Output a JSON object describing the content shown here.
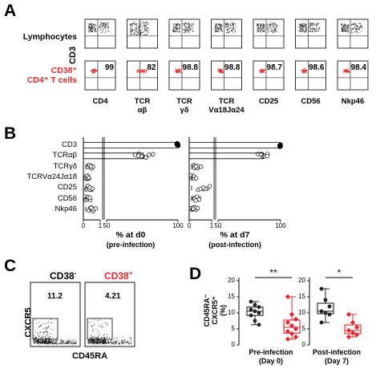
{
  "panel_a": {
    "letter": "A",
    "row_lymphocytes": "Lymphocytes",
    "row_cd38_line1": "CD38⁺",
    "row_cd38_line2": "CD4⁺ T cells",
    "y_axis_label": "CD3",
    "markers": [
      {
        "line1": "CD4",
        "line2": "",
        "value": "99"
      },
      {
        "line1": "TCR",
        "line2": "αβ",
        "value": "82"
      },
      {
        "line1": "TCR",
        "line2": "γδ",
        "value": "98.8"
      },
      {
        "line1": "TCR",
        "line2": "Vα18Jα24",
        "value": "98.8"
      },
      {
        "line1": "CD25",
        "line2": "",
        "value": "98.7"
      },
      {
        "line1": "CD56",
        "line2": "",
        "value": "98.6"
      },
      {
        "line1": "Nkp46",
        "line2": "",
        "value": "98.4"
      }
    ],
    "colors": {
      "lymphocyte_dots": "#222222",
      "cd38_dots": "#e8262a"
    }
  },
  "panel_b": {
    "letter": "B",
    "row_labels": [
      "CD3",
      "TCRαβ",
      "TCRγδ",
      "TCRVα24Jα18",
      "CD25",
      "CD56",
      "Nkp46"
    ],
    "x_ticks": [
      "0",
      "1",
      "50",
      "100"
    ],
    "d0_xlabel": "% at d0",
    "d0_sublabel": "(pre-infection)",
    "d7_xlabel": "% at d7",
    "d7_sublabel": "(post-infection)",
    "chart_data": [
      {
        "type": "scatter",
        "title": "",
        "xlabel": "% at d0 (pre-infection)",
        "categories": [
          "CD3",
          "TCRαβ",
          "TCRγδ",
          "TCRVα24Jα18",
          "CD25",
          "CD56",
          "Nkp46"
        ],
        "values": [
          [
            99.5,
            99.6,
            99.7,
            99.8,
            99.6,
            99.5,
            99.7
          ],
          [
            70,
            73,
            76,
            78,
            80,
            75,
            72,
            82
          ],
          [
            0.2,
            0.4,
            0.5,
            0.3,
            0.6,
            0.35,
            0.45
          ],
          [
            0.1,
            0.2,
            0.3,
            0.25,
            0.15,
            0.35,
            0.2
          ],
          [
            0.2,
            0.3,
            0.45,
            0.55,
            0.35,
            0.25,
            0.4
          ],
          [
            0.1,
            0.2,
            0.3,
            0.4,
            0.25,
            0.35,
            0.15
          ],
          [
            0.3,
            0.5,
            0.7,
            0.6,
            0.4,
            0.55,
            0.45
          ]
        ],
        "xlim": [
          0,
          100
        ]
      },
      {
        "type": "scatter",
        "title": "",
        "xlabel": "% at d7 (post-infection)",
        "categories": [
          "CD3",
          "TCRαβ",
          "TCRγδ",
          "TCRVα24Jα18",
          "CD25",
          "CD56",
          "Nkp46"
        ],
        "values": [
          [
            99.5,
            99.6,
            99.7,
            99.8,
            99.6,
            99.5,
            99.7
          ],
          [
            82,
            85,
            88,
            86,
            90,
            84,
            87,
            89
          ],
          [
            0.2,
            0.3,
            0.4,
            0.25,
            0.35,
            0.5,
            0.3
          ],
          [
            0.1,
            0.2,
            0.15,
            0.25,
            0.3,
            0.2,
            0.1
          ],
          [
            0.4,
            0.6,
            0.8,
            0.7,
            0.5,
            0.9,
            0.65
          ],
          [
            0.2,
            0.3,
            0.4,
            0.35,
            0.25,
            0.45,
            0.3
          ],
          [
            0.1,
            0.2,
            0.3,
            0.25,
            0.15,
            0.35,
            0.2
          ]
        ],
        "xlim": [
          0,
          100
        ]
      }
    ]
  },
  "panel_c": {
    "letter": "C",
    "left_title": "CD38",
    "left_sup": "-",
    "right_title": "CD38",
    "right_sup": "+",
    "left_value": "11.2",
    "right_value": "4.21",
    "y_label": "CXCR5",
    "x_label": "CD45RA"
  },
  "panel_d": {
    "letter": "D",
    "y_label_line1": "CD45RA⁻",
    "y_label_line2": "CXCR5⁺",
    "y_label_line3": "(%)",
    "y_ticks": [
      "0",
      "5",
      "10",
      "15",
      "20"
    ],
    "chart_data": [
      {
        "type": "box",
        "xlabel": "Pre-infection (Day 0)",
        "xlabel_line1": "Pre-infection",
        "xlabel_line2": "(Day 0)",
        "significance": "**",
        "ylim": [
          0,
          20
        ],
        "series": [
          {
            "color": "#222222",
            "values": [
              13.5,
              12.5,
              11.8,
              11.0,
              10.5,
              10.0,
              9.2,
              7.5,
              6.3
            ]
          },
          {
            "color": "#e8262a",
            "values": [
              15.0,
              9.5,
              8.0,
              7.0,
              6.0,
              5.0,
              4.2,
              3.5,
              2.5,
              1.8
            ]
          }
        ]
      },
      {
        "type": "box",
        "xlabel": "Post-infection (Day 7)",
        "xlabel_line1": "Post-infection",
        "xlabel_line2": "(Day 7)",
        "significance": "*",
        "ylim": [
          0,
          20
        ],
        "series": [
          {
            "color": "#222222",
            "values": [
              17.5,
              14.0,
              12.0,
              10.5,
              10.0,
              9.5,
              7.0
            ]
          },
          {
            "color": "#e8262a",
            "values": [
              9.5,
              7.0,
              5.5,
              4.5,
              3.8,
              3.2,
              2.5
            ]
          }
        ]
      }
    ]
  }
}
